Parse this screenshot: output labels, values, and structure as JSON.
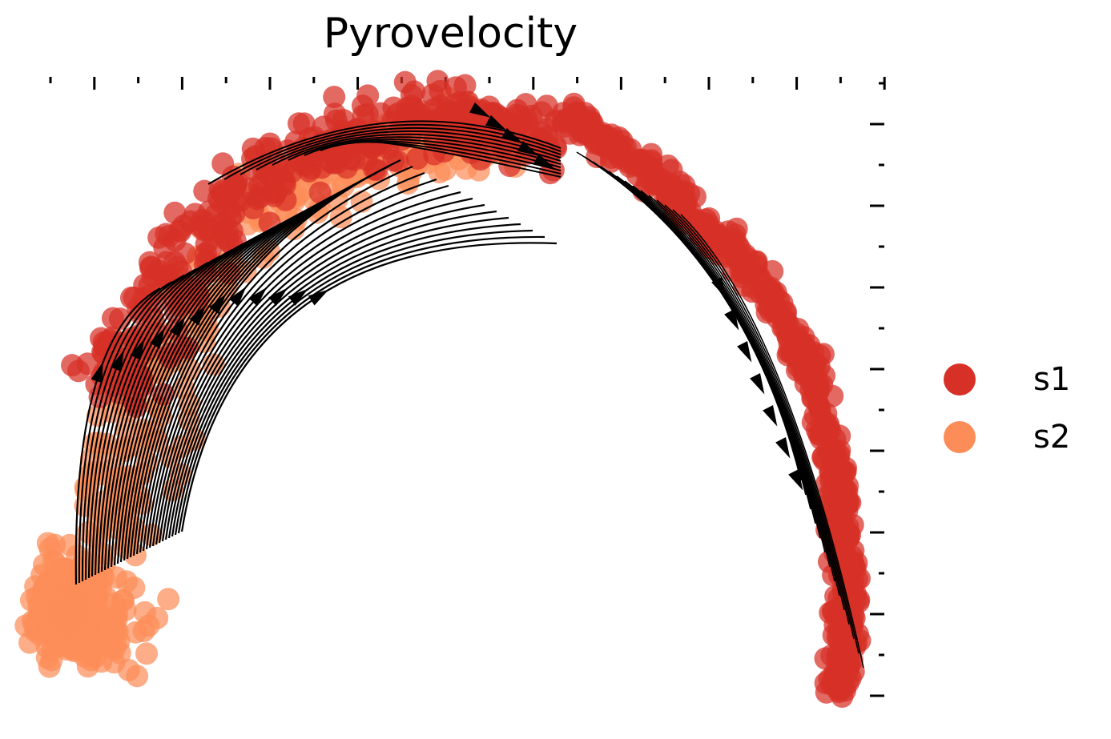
{
  "chart_data": {
    "type": "scatter",
    "title": "Pyrovelocity",
    "xlabel": "",
    "ylabel": "",
    "grid": false,
    "legend_position": "right",
    "overlay": "velocity streamlines with arrowheads",
    "series": [
      {
        "name": "s1",
        "color": "#d73027"
      },
      {
        "name": "s2",
        "color": "#fc8d59"
      }
    ]
  }
}
